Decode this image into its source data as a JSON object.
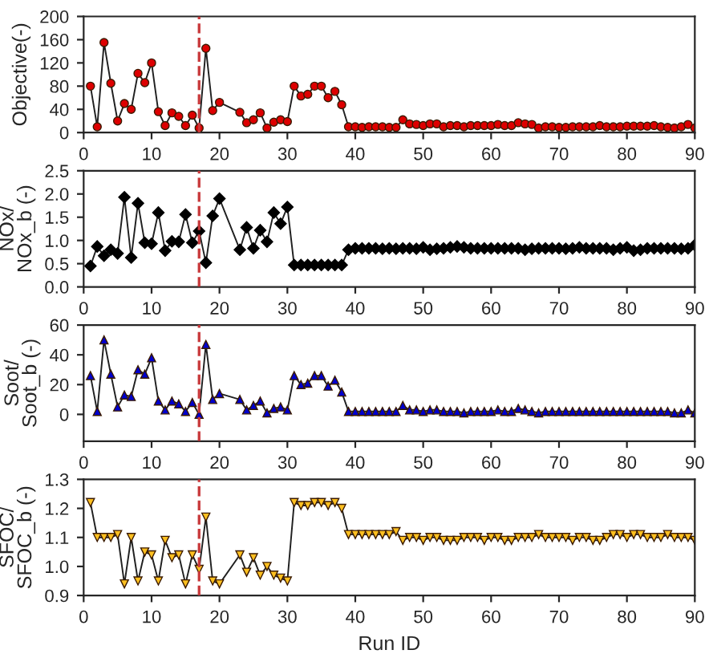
{
  "chart_data": [
    {
      "type": "line",
      "ylabel": "Objective(-)",
      "marker": "circle",
      "line_style": "solid",
      "grid": false,
      "legend": false,
      "x": [
        1,
        2,
        3,
        4,
        5,
        6,
        7,
        8,
        9,
        10,
        11,
        12,
        13,
        14,
        15,
        16,
        17,
        18,
        19,
        20,
        23,
        24,
        25,
        26,
        27,
        28,
        29,
        30,
        31,
        32,
        33,
        34,
        35,
        36,
        37,
        38,
        39,
        40,
        41,
        42,
        43,
        44,
        45,
        46,
        47,
        48,
        49,
        50,
        51,
        52,
        53,
        54,
        55,
        56,
        57,
        58,
        59,
        60,
        61,
        62,
        63,
        64,
        65,
        66,
        67,
        68,
        69,
        70,
        71,
        72,
        73,
        74,
        75,
        76,
        77,
        78,
        79,
        80,
        81,
        82,
        83,
        84,
        85,
        86,
        87,
        88,
        89,
        90
      ],
      "series": [
        {
          "color": "#dd0000",
          "values": [
            80,
            10,
            155,
            85,
            20,
            50,
            40,
            102,
            86,
            120,
            36,
            12,
            34,
            28,
            12,
            30,
            8,
            145,
            38,
            52,
            35,
            17,
            22,
            34,
            8,
            18,
            22,
            19,
            80,
            63,
            66,
            80,
            80,
            60,
            71,
            48,
            10,
            10,
            9,
            10,
            10,
            10,
            9,
            9,
            22,
            15,
            14,
            12,
            15,
            15,
            10,
            12,
            12,
            10,
            12,
            12,
            12,
            12,
            14,
            12,
            12,
            17,
            15,
            14,
            8,
            10,
            10,
            9,
            9,
            10,
            10,
            10,
            10,
            12,
            10,
            10,
            10,
            11,
            11,
            11,
            11,
            12,
            10,
            9,
            8,
            10,
            14,
            8
          ]
        }
      ],
      "xlim": [
        0,
        90
      ],
      "xticks": [
        0,
        10,
        20,
        30,
        40,
        50,
        60,
        70,
        80,
        90
      ],
      "ylim": [
        0,
        200
      ],
      "yticks": [
        0,
        40,
        80,
        120,
        160,
        200
      ],
      "ref_lines": [
        {
          "axis": "x",
          "value": 17,
          "color": "#c8393b",
          "line_style": "dashed"
        }
      ]
    },
    {
      "type": "line",
      "ylabel": "NOx/\nNOx_b (-)",
      "marker": "diamond",
      "line_style": "solid",
      "grid": false,
      "legend": false,
      "x": [
        1,
        2,
        3,
        4,
        5,
        6,
        7,
        8,
        9,
        10,
        11,
        12,
        13,
        14,
        15,
        16,
        17,
        18,
        19,
        20,
        23,
        24,
        25,
        26,
        27,
        28,
        29,
        30,
        31,
        32,
        33,
        34,
        35,
        36,
        37,
        38,
        39,
        40,
        41,
        42,
        43,
        44,
        45,
        46,
        47,
        48,
        49,
        50,
        51,
        52,
        53,
        54,
        55,
        56,
        57,
        58,
        59,
        60,
        61,
        62,
        63,
        64,
        65,
        66,
        67,
        68,
        69,
        70,
        71,
        72,
        73,
        74,
        75,
        76,
        77,
        78,
        79,
        80,
        81,
        82,
        83,
        84,
        85,
        86,
        87,
        88,
        89,
        90
      ],
      "series": [
        {
          "color": "#000000",
          "values": [
            0.45,
            0.87,
            0.67,
            0.8,
            0.72,
            1.93,
            0.63,
            1.8,
            0.95,
            0.93,
            1.6,
            0.78,
            0.98,
            0.97,
            1.56,
            0.95,
            1.2,
            0.52,
            1.53,
            1.9,
            0.8,
            1.28,
            0.83,
            1.22,
            0.97,
            1.6,
            1.36,
            1.72,
            0.47,
            0.47,
            0.47,
            0.47,
            0.47,
            0.47,
            0.47,
            0.47,
            0.8,
            0.83,
            0.83,
            0.83,
            0.83,
            0.82,
            0.83,
            0.82,
            0.83,
            0.83,
            0.82,
            0.85,
            0.8,
            0.82,
            0.83,
            0.85,
            0.87,
            0.85,
            0.83,
            0.83,
            0.83,
            0.83,
            0.83,
            0.83,
            0.83,
            0.83,
            0.8,
            0.82,
            0.83,
            0.83,
            0.83,
            0.83,
            0.82,
            0.83,
            0.85,
            0.83,
            0.83,
            0.83,
            0.83,
            0.8,
            0.83,
            0.85,
            0.78,
            0.8,
            0.83,
            0.83,
            0.83,
            0.83,
            0.83,
            0.82,
            0.83,
            0.9
          ]
        }
      ],
      "xlim": [
        0,
        90
      ],
      "xticks": [
        0,
        10,
        20,
        30,
        40,
        50,
        60,
        70,
        80,
        90
      ],
      "ylim": [
        0,
        2.5
      ],
      "yticks": [
        {
          "value": 0,
          "label": "0.0"
        },
        0.5,
        {
          "value": 1,
          "label": "1.0"
        },
        1.5,
        {
          "value": 2,
          "label": "2.0"
        },
        2.5
      ],
      "ref_lines": [
        {
          "axis": "x",
          "value": 17,
          "color": "#c8393b",
          "line_style": "dashed"
        }
      ]
    },
    {
      "type": "line",
      "ylabel": "Soot/\nSoot_b (-)",
      "marker": "triangle",
      "line_style": "solid",
      "grid": false,
      "legend": false,
      "x": [
        1,
        2,
        3,
        4,
        5,
        6,
        7,
        8,
        9,
        10,
        11,
        12,
        13,
        14,
        15,
        16,
        17,
        18,
        19,
        20,
        23,
        24,
        25,
        26,
        27,
        28,
        29,
        30,
        31,
        32,
        33,
        34,
        35,
        36,
        37,
        38,
        39,
        40,
        41,
        42,
        43,
        44,
        45,
        46,
        47,
        48,
        49,
        50,
        51,
        52,
        53,
        54,
        55,
        56,
        57,
        58,
        59,
        60,
        61,
        62,
        63,
        64,
        65,
        66,
        67,
        68,
        69,
        70,
        71,
        72,
        73,
        74,
        75,
        76,
        77,
        78,
        79,
        80,
        81,
        82,
        83,
        84,
        85,
        86,
        87,
        88,
        89,
        90
      ],
      "series": [
        {
          "color": "#0000cc",
          "values": [
            26,
            2,
            50,
            27,
            5,
            13,
            12,
            30,
            27,
            38,
            9,
            3,
            9,
            7,
            2,
            8,
            0,
            47,
            10,
            14,
            10,
            3,
            6,
            9,
            1,
            4,
            5,
            3,
            26,
            20,
            21,
            26,
            26,
            19,
            23,
            15,
            2,
            2,
            2,
            2,
            2,
            2,
            2,
            2,
            6,
            3,
            3,
            2,
            3,
            3,
            2,
            2,
            2,
            1,
            2,
            2,
            2,
            2,
            3,
            2,
            2,
            4,
            3,
            2,
            1,
            2,
            2,
            2,
            2,
            2,
            2,
            2,
            2,
            2,
            2,
            2,
            2,
            2,
            2,
            2,
            2,
            2,
            2,
            2,
            1,
            1,
            3,
            1
          ]
        }
      ],
      "xlim": [
        0,
        90
      ],
      "xticks": [
        0,
        10,
        20,
        30,
        40,
        50,
        60,
        70,
        80,
        90
      ],
      "ylim": [
        -18,
        60
      ],
      "yticks": [
        0,
        20,
        40,
        60
      ],
      "ref_lines": [
        {
          "axis": "x",
          "value": 17,
          "color": "#c8393b",
          "line_style": "dashed"
        }
      ]
    },
    {
      "type": "line",
      "xlabel": "Run ID",
      "ylabel": "SFOC/\nSFOC_b (-)",
      "marker": "triangle_down",
      "line_style": "solid",
      "grid": false,
      "legend": false,
      "x": [
        1,
        2,
        3,
        4,
        5,
        6,
        7,
        8,
        9,
        10,
        11,
        12,
        13,
        14,
        15,
        16,
        17,
        18,
        19,
        20,
        23,
        24,
        25,
        26,
        27,
        28,
        29,
        30,
        31,
        32,
        33,
        34,
        35,
        36,
        37,
        38,
        39,
        40,
        41,
        42,
        43,
        44,
        45,
        46,
        47,
        48,
        49,
        50,
        51,
        52,
        53,
        54,
        55,
        56,
        57,
        58,
        59,
        60,
        61,
        62,
        63,
        64,
        65,
        66,
        67,
        68,
        69,
        70,
        71,
        72,
        73,
        74,
        75,
        76,
        77,
        78,
        79,
        80,
        81,
        82,
        83,
        84,
        85,
        86,
        87,
        88,
        89,
        90
      ],
      "series": [
        {
          "color": "#ffc020",
          "values": [
            1.22,
            1.1,
            1.1,
            1.1,
            1.11,
            0.94,
            1.1,
            0.95,
            1.05,
            1.04,
            0.95,
            1.09,
            1.03,
            1.04,
            0.94,
            1.04,
            0.99,
            1.17,
            0.95,
            0.94,
            1.04,
            0.98,
            1.03,
            0.97,
            1.0,
            0.97,
            0.96,
            0.95,
            1.22,
            1.21,
            1.21,
            1.22,
            1.22,
            1.21,
            1.22,
            1.2,
            1.11,
            1.11,
            1.11,
            1.11,
            1.11,
            1.11,
            1.11,
            1.12,
            1.09,
            1.1,
            1.1,
            1.09,
            1.1,
            1.1,
            1.09,
            1.09,
            1.09,
            1.1,
            1.1,
            1.1,
            1.09,
            1.1,
            1.1,
            1.09,
            1.09,
            1.1,
            1.1,
            1.1,
            1.11,
            1.1,
            1.1,
            1.1,
            1.1,
            1.09,
            1.1,
            1.1,
            1.09,
            1.09,
            1.1,
            1.11,
            1.11,
            1.1,
            1.11,
            1.11,
            1.1,
            1.1,
            1.1,
            1.11,
            1.1,
            1.1,
            1.1,
            1.09
          ]
        }
      ],
      "xlim": [
        0,
        90
      ],
      "xticks": [
        0,
        10,
        20,
        30,
        40,
        50,
        60,
        70,
        80,
        90
      ],
      "ylim": [
        0.9,
        1.3
      ],
      "yticks": [
        0.9,
        {
          "value": 1,
          "label": "1.0"
        },
        1.1,
        1.2,
        1.3
      ],
      "ref_lines": [
        {
          "axis": "x",
          "value": 17,
          "color": "#c8393b",
          "line_style": "dashed"
        }
      ]
    }
  ]
}
